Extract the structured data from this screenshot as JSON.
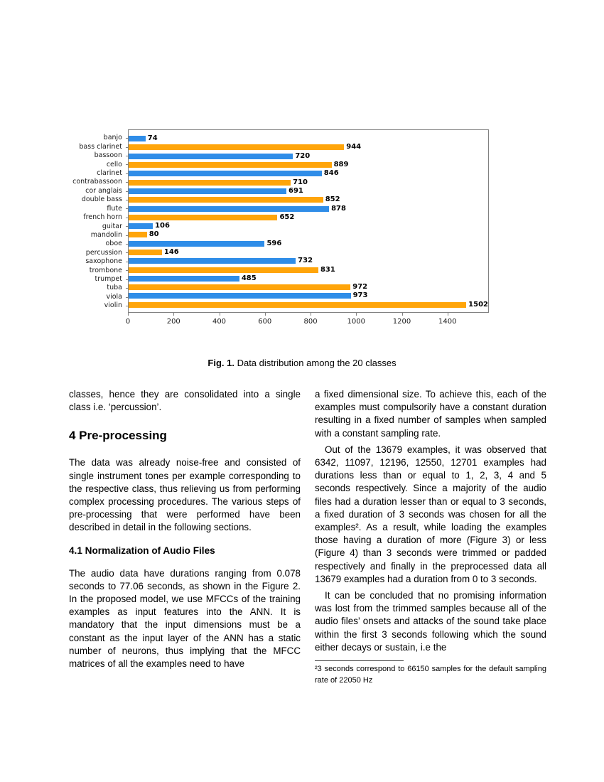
{
  "figure": {
    "caption": {
      "label": "Fig. 1.",
      "text": "Data distribution among the 20 classes"
    },
    "chart_data": {
      "type": "bar",
      "orientation": "horizontal",
      "title": "",
      "xlabel": "",
      "ylabel": "",
      "categories": [
        "banjo",
        "bass clarinet",
        "bassoon",
        "cello",
        "clarinet",
        "contrabassoon",
        "cor anglais",
        "double bass",
        "flute",
        "french horn",
        "guitar",
        "mandolin",
        "oboe",
        "percussion",
        "saxophone",
        "trombone",
        "trumpet",
        "tuba",
        "viola",
        "violin"
      ],
      "values": [
        74,
        944,
        720,
        889,
        846,
        710,
        691,
        852,
        878,
        652,
        106,
        80,
        596,
        146,
        732,
        831,
        485,
        972,
        973,
        1502
      ],
      "colors": {
        "blue": "#2F8DE8",
        "orange": "#FFA50A"
      },
      "color_pattern": "alternating, first bar blue",
      "x_ticks": [
        0,
        200,
        400,
        600,
        800,
        1000,
        1200,
        1400
      ],
      "xlim": [
        0,
        1575
      ],
      "grid": false,
      "legend": null,
      "value_labels": true
    }
  },
  "content": {
    "left_column": {
      "para_continuation": "classes, hence they are consolidated into a single class i.e. ‘percussion’.",
      "section_heading": "4 Pre-processing",
      "para_preprocessing": "The data was already noise-free and consisted of single instrument tones per example corresponding to the respective class, thus relieving us from performing complex processing procedures. The various steps of pre-processing that were performed have been described in detail in the following sections.",
      "subsection_heading": "4.1 Normalization of Audio Files",
      "para_normalization": "The audio data have durations ranging from 0.078 seconds to 77.06 seconds, as shown in the Figure 2.  In the proposed model, we use MFCCs of the training examples as input features into the ANN. It is mandatory that the input dimensions must be a constant as the input layer of the ANN has a static number of neurons, thus implying that the MFCC matrices of all the examples need to have"
    },
    "right_column": {
      "para_fixed_size": "a fixed dimensional size.  To achieve this, each of the examples must compulsorily have a constant duration resulting in a fixed number of samples when sampled with a constant sampling rate.",
      "para_out_of": "Out of the 13679 examples, it was observed that 6342, 11097, 12196, 12550, 12701 examples had durations less than or equal to 1, 2, 3, 4 and 5 seconds respectively.  Since a majority of the audio files had a duration lesser than or equal to 3 seconds, a fixed duration of 3 seconds was chosen for all the examples².  As a result, while loading the examples those having a duration of more (Figure 3) or less (Figure 4) than 3 seconds were trimmed or padded respectively and finally in the preprocessed data all 13679 examples had a duration from 0 to 3 seconds.",
      "para_concluded": "It can be concluded that no promising information was lost from the trimmed samples because all of the audio files’ onsets and attacks of the sound take place within the first 3 seconds following which the sound either decays or sustain, i.e the",
      "footnote": "²3 seconds correspond to 66150 samples for the default sampling rate of 22050 Hz"
    }
  }
}
